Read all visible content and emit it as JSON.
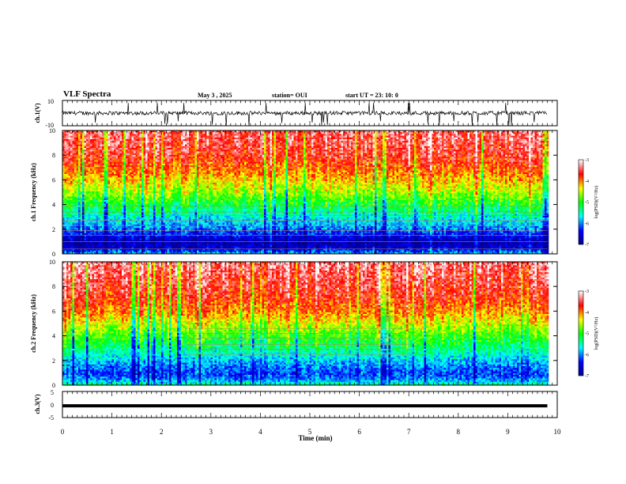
{
  "header": {
    "title": "VLF Spectra",
    "date": "May 3 , 2025",
    "station": "station= OUI",
    "start": "start UT = 23: 10: 0"
  },
  "chart_data": [
    {
      "type": "line",
      "panel": "ch1-waveform",
      "ylabel": "ch.1(V)",
      "ylim": [
        -10,
        10
      ],
      "y_tick_labels": [
        "10",
        "-10"
      ],
      "xlim": [
        0,
        10
      ],
      "baseline": 0,
      "amplitude_note": "dense noisy trace around 0 with occasional spikes to about -10"
    },
    {
      "type": "heatmap",
      "panel": "ch1-spectrogram",
      "ylabel": "ch.1 Frequency (kHz)",
      "ylim": [
        0,
        10
      ],
      "y_tick_labels": [
        "0",
        "2",
        "4",
        "6",
        "8",
        "10"
      ],
      "xlim": [
        0,
        9.8
      ],
      "colorbar": {
        "label": "log(PSD)(V²/Hz)",
        "range": [
          -7,
          -3
        ],
        "tick_labels": [
          "-3",
          "-4",
          "-5",
          "-6",
          "-7"
        ]
      },
      "colormap": [
        "#00008f",
        "#0000ff",
        "#00ffff",
        "#00ff00",
        "#ffff00",
        "#ff0000",
        "#ffffff"
      ],
      "profile_khz_to_logpsd": [
        [
          0,
          -5.8
        ],
        [
          0.5,
          -6.6
        ],
        [
          1.0,
          -6.8
        ],
        [
          1.5,
          -6.4
        ],
        [
          2.0,
          -6.0
        ],
        [
          3.0,
          -5.6
        ],
        [
          4.0,
          -5.1
        ],
        [
          5.0,
          -4.6
        ],
        [
          6.0,
          -4.2
        ],
        [
          7.0,
          -3.9
        ],
        [
          8.0,
          -3.6
        ],
        [
          10.0,
          -3.4
        ]
      ],
      "narrowband_lines_khz": [
        0.4,
        1.0,
        1.5,
        1.9,
        2.3,
        2.7,
        3.1,
        3.4,
        3.9
      ]
    },
    {
      "type": "heatmap",
      "panel": "ch2-spectrogram",
      "ylabel": "ch.2 Frequency (kHz)",
      "ylim": [
        0,
        10
      ],
      "y_tick_labels": [
        "0",
        "2",
        "4",
        "6",
        "8",
        "10"
      ],
      "xlim": [
        0,
        9.8
      ],
      "colorbar": {
        "label": "log(PSD)(V²/Hz)",
        "range": [
          -7,
          -3
        ],
        "tick_labels": [
          "-3",
          "-4",
          "-5",
          "-6",
          "-7"
        ]
      },
      "colormap": [
        "#00008f",
        "#0000ff",
        "#00ffff",
        "#00ff00",
        "#ffff00",
        "#ff0000",
        "#ffffff"
      ],
      "profile_khz_to_logpsd": [
        [
          0,
          -5.4
        ],
        [
          0.5,
          -6.0
        ],
        [
          1.0,
          -6.2
        ],
        [
          2.0,
          -5.8
        ],
        [
          3.0,
          -5.3
        ],
        [
          4.0,
          -4.9
        ],
        [
          5.0,
          -4.4
        ],
        [
          6.0,
          -4.0
        ],
        [
          7.0,
          -3.7
        ],
        [
          10.0,
          -3.3
        ]
      ],
      "narrowband_lines_khz": [
        2.5,
        2.9,
        3.3,
        3.8,
        4.2,
        4.6
      ],
      "narrowband_time_min": [
        2.5,
        7.0
      ]
    },
    {
      "type": "line",
      "panel": "ch3-waveform",
      "ylabel": "ch.3(V)",
      "ylim": [
        -5,
        5
      ],
      "y_tick_labels": [
        "5",
        "0",
        "-5"
      ],
      "xlim": [
        0,
        10
      ],
      "x": [
        0,
        9.8
      ],
      "y": [
        -0.5,
        -0.5
      ],
      "xlabel": "Time (min)",
      "x_tick_labels": [
        "0",
        "1",
        "2",
        "3",
        "4",
        "5",
        "6",
        "7",
        "8",
        "9",
        "10"
      ]
    }
  ]
}
